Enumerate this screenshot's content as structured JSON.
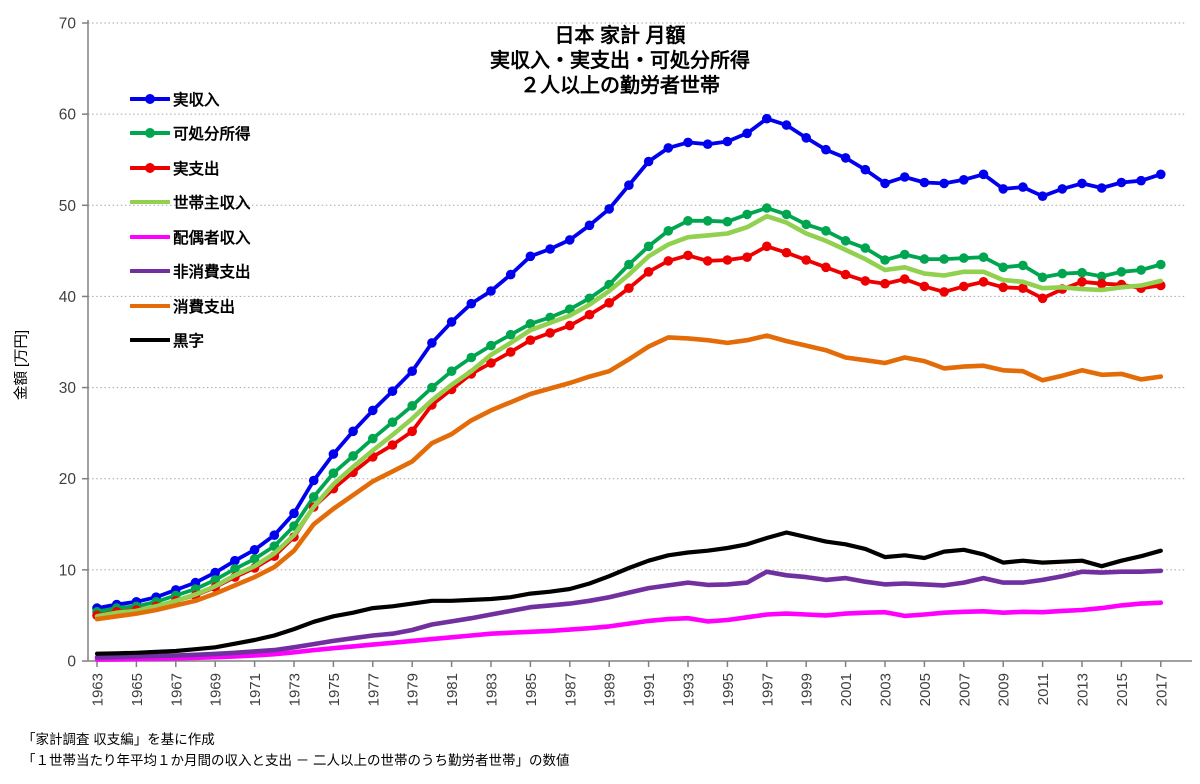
{
  "footnotes": [
    "「家計調査 収支編」を基に作成",
    "「１世帯当たり年平均１か月間の収入と支出 － 二人以上の世帯のうち勤労者世帯」の数値"
  ],
  "chart_data": {
    "type": "line",
    "title_lines": [
      "日本 家計 月額",
      "実収入・実支出・可処分所得",
      "２人以上の勤労者世帯"
    ],
    "ylabel": "金額 [万円]",
    "xlabel": "",
    "ylim": [
      0,
      70
    ],
    "y_ticks": [
      0,
      10,
      20,
      30,
      40,
      50,
      60,
      70
    ],
    "grid": "horizontal-dotted",
    "legend_position": "upper-left-inside",
    "axis_color": "#808080",
    "grid_color": "#a6a6a6",
    "tick_label_color": "#3f3f3f",
    "x_tick_years": [
      1963,
      1965,
      1967,
      1969,
      1971,
      1973,
      1975,
      1977,
      1979,
      1981,
      1983,
      1985,
      1987,
      1989,
      1991,
      1993,
      1995,
      1997,
      1999,
      2001,
      2003,
      2005,
      2007,
      2009,
      2011,
      2013,
      2015,
      2017
    ],
    "x": [
      1963,
      1964,
      1965,
      1966,
      1967,
      1968,
      1969,
      1970,
      1971,
      1972,
      1973,
      1974,
      1975,
      1976,
      1977,
      1978,
      1979,
      1980,
      1981,
      1982,
      1983,
      1984,
      1985,
      1986,
      1987,
      1988,
      1989,
      1990,
      1991,
      1992,
      1993,
      1994,
      1995,
      1996,
      1997,
      1998,
      1999,
      2000,
      2001,
      2002,
      2003,
      2004,
      2005,
      2006,
      2007,
      2008,
      2009,
      2010,
      2011,
      2012,
      2013,
      2014,
      2015,
      2016,
      2017
    ],
    "series": [
      {
        "name": "実収入",
        "color": "#0000ee",
        "marker": true,
        "values": [
          5.8,
          6.2,
          6.5,
          7.0,
          7.8,
          8.6,
          9.7,
          11.0,
          12.2,
          13.8,
          16.2,
          19.8,
          22.7,
          25.2,
          27.5,
          29.6,
          31.8,
          34.9,
          37.2,
          39.2,
          40.6,
          42.4,
          44.4,
          45.2,
          46.2,
          47.8,
          49.6,
          52.2,
          54.8,
          56.3,
          56.9,
          56.7,
          57.0,
          57.9,
          59.5,
          58.8,
          57.4,
          56.1,
          55.2,
          53.9,
          52.4,
          53.1,
          52.5,
          52.4,
          52.8,
          53.4,
          51.8,
          52.0,
          51.0,
          51.8,
          52.4,
          51.9,
          52.5,
          52.7,
          53.4
        ]
      },
      {
        "name": "可処分所得",
        "color": "#00a550",
        "marker": true,
        "values": [
          5.4,
          5.8,
          6.0,
          6.5,
          7.2,
          7.9,
          8.9,
          10.1,
          11.2,
          12.6,
          14.8,
          18.0,
          20.6,
          22.5,
          24.4,
          26.2,
          28.0,
          30.0,
          31.8,
          33.3,
          34.6,
          35.8,
          37.0,
          37.7,
          38.6,
          39.8,
          41.3,
          43.5,
          45.5,
          47.2,
          48.3,
          48.3,
          48.2,
          49.0,
          49.7,
          49.0,
          47.9,
          47.2,
          46.1,
          45.3,
          44.0,
          44.6,
          44.1,
          44.1,
          44.2,
          44.3,
          43.2,
          43.4,
          42.1,
          42.5,
          42.6,
          42.2,
          42.7,
          42.9,
          43.5
        ]
      },
      {
        "name": "実支出",
        "color": "#ee0000",
        "marker": true,
        "values": [
          5.0,
          5.4,
          5.6,
          6.0,
          6.6,
          7.2,
          8.1,
          9.2,
          10.2,
          11.5,
          13.6,
          16.9,
          18.9,
          20.7,
          22.4,
          23.7,
          25.2,
          28.1,
          29.8,
          31.5,
          32.7,
          33.9,
          35.2,
          36.0,
          36.8,
          38.0,
          39.3,
          40.9,
          42.7,
          43.9,
          44.5,
          43.9,
          44.0,
          44.3,
          45.5,
          44.8,
          44.0,
          43.2,
          42.4,
          41.7,
          41.4,
          41.9,
          41.1,
          40.5,
          41.1,
          41.6,
          41.0,
          40.9,
          39.8,
          40.8,
          41.6,
          41.4,
          41.3,
          40.9,
          41.2
        ]
      },
      {
        "name": "世帯主収入",
        "color": "#92d050",
        "marker": false,
        "values": [
          4.9,
          5.3,
          5.5,
          6.0,
          6.6,
          7.3,
          8.2,
          9.4,
          10.4,
          11.8,
          13.8,
          16.9,
          19.4,
          21.3,
          23.1,
          24.8,
          26.6,
          28.6,
          30.3,
          31.8,
          33.6,
          34.9,
          36.3,
          37.1,
          37.9,
          39.1,
          40.6,
          42.4,
          44.4,
          45.7,
          46.5,
          46.7,
          46.9,
          47.6,
          48.8,
          48.1,
          46.9,
          46.1,
          45.1,
          44.1,
          42.9,
          43.2,
          42.5,
          42.3,
          42.7,
          42.7,
          41.8,
          41.6,
          40.9,
          41.0,
          40.8,
          40.7,
          41.0,
          41.2,
          41.7
        ]
      },
      {
        "name": "配偶者収入",
        "color": "#ff00ff",
        "marker": false,
        "values": [
          0.15,
          0.18,
          0.2,
          0.25,
          0.3,
          0.35,
          0.42,
          0.5,
          0.6,
          0.75,
          0.95,
          1.2,
          1.4,
          1.6,
          1.8,
          2.0,
          2.2,
          2.4,
          2.6,
          2.8,
          3.0,
          3.1,
          3.2,
          3.3,
          3.45,
          3.6,
          3.8,
          4.1,
          4.4,
          4.6,
          4.7,
          4.35,
          4.5,
          4.8,
          5.1,
          5.2,
          5.1,
          5.0,
          5.2,
          5.3,
          5.35,
          4.95,
          5.1,
          5.3,
          5.4,
          5.45,
          5.3,
          5.4,
          5.35,
          5.5,
          5.6,
          5.8,
          6.1,
          6.3,
          6.4
        ]
      },
      {
        "name": "非消費支出",
        "color": "#7030a0",
        "marker": false,
        "values": [
          0.4,
          0.44,
          0.5,
          0.55,
          0.6,
          0.68,
          0.78,
          0.9,
          1.05,
          1.2,
          1.5,
          1.85,
          2.2,
          2.5,
          2.8,
          3.0,
          3.4,
          4.0,
          4.35,
          4.7,
          5.1,
          5.5,
          5.9,
          6.1,
          6.3,
          6.6,
          7.0,
          7.5,
          8.0,
          8.3,
          8.6,
          8.35,
          8.4,
          8.6,
          9.8,
          9.4,
          9.2,
          8.9,
          9.1,
          8.7,
          8.4,
          8.5,
          8.4,
          8.3,
          8.6,
          9.1,
          8.6,
          8.6,
          8.9,
          9.3,
          9.8,
          9.7,
          9.8,
          9.8,
          9.9
        ]
      },
      {
        "name": "消費支出",
        "color": "#e36c09",
        "marker": false,
        "values": [
          4.6,
          4.9,
          5.2,
          5.6,
          6.1,
          6.6,
          7.4,
          8.3,
          9.2,
          10.3,
          12.1,
          15.0,
          16.7,
          18.2,
          19.7,
          20.8,
          21.9,
          23.9,
          24.9,
          26.4,
          27.5,
          28.4,
          29.3,
          29.9,
          30.5,
          31.2,
          31.8,
          33.1,
          34.5,
          35.5,
          35.4,
          35.2,
          34.9,
          35.2,
          35.7,
          35.1,
          34.6,
          34.1,
          33.3,
          33.0,
          32.7,
          33.3,
          32.9,
          32.1,
          32.3,
          32.4,
          31.9,
          31.8,
          30.8,
          31.3,
          31.9,
          31.4,
          31.5,
          30.9,
          31.2
        ]
      },
      {
        "name": "黒字",
        "color": "#000000",
        "marker": false,
        "values": [
          0.8,
          0.85,
          0.9,
          1.0,
          1.1,
          1.3,
          1.5,
          1.9,
          2.3,
          2.8,
          3.5,
          4.3,
          4.9,
          5.3,
          5.8,
          6.0,
          6.3,
          6.6,
          6.6,
          6.7,
          6.8,
          7.0,
          7.4,
          7.6,
          7.9,
          8.5,
          9.3,
          10.2,
          11.0,
          11.6,
          11.9,
          12.1,
          12.4,
          12.8,
          13.5,
          14.1,
          13.6,
          13.1,
          12.8,
          12.3,
          11.4,
          11.6,
          11.3,
          12.0,
          12.2,
          11.7,
          10.8,
          11.0,
          10.8,
          10.9,
          11.0,
          10.4,
          11.0,
          11.5,
          12.1
        ]
      }
    ]
  }
}
